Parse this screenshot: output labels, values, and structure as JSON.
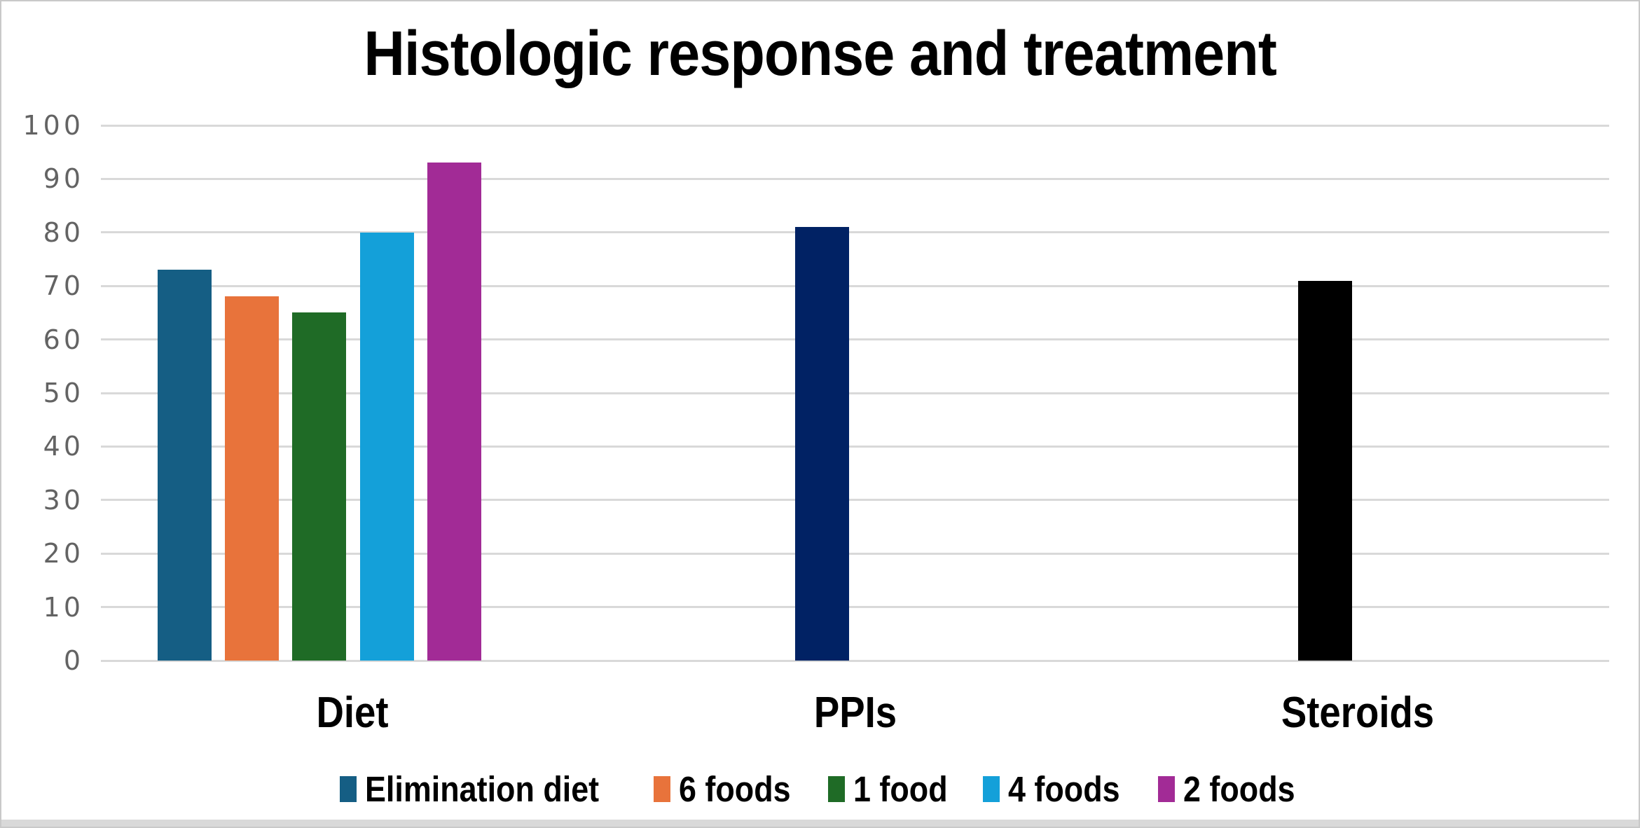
{
  "chart_data": {
    "type": "bar",
    "title": "Histologic response and treatment",
    "xlabel": "",
    "ylabel": "",
    "categories": [
      "Diet",
      "PPIs",
      "Steroids"
    ],
    "yticks": [
      0,
      10,
      20,
      30,
      40,
      50,
      60,
      70,
      80,
      90,
      100
    ],
    "ylim": [
      0,
      100
    ],
    "grid": true,
    "legend_position": "bottom",
    "legend": [
      {
        "label": "Elimination diet",
        "color": "#155e84"
      },
      {
        "label": "6 foods",
        "color": "#e8733b"
      },
      {
        "label": "1 food",
        "color": "#1f6b26"
      },
      {
        "label": "4 foods",
        "color": "#14a0d9"
      },
      {
        "label": "2 foods",
        "color": "#a22b96"
      }
    ],
    "bars": [
      {
        "category": "Diet",
        "series": "Elimination diet",
        "value": 73,
        "color": "#155e84"
      },
      {
        "category": "Diet",
        "series": "6 foods",
        "value": 68,
        "color": "#e8733b"
      },
      {
        "category": "Diet",
        "series": "1 food",
        "value": 65,
        "color": "#1f6b26"
      },
      {
        "category": "Diet",
        "series": "4 foods",
        "value": 80,
        "color": "#14a0d9"
      },
      {
        "category": "Diet",
        "series": "2 foods",
        "value": 93,
        "color": "#a22b96"
      },
      {
        "category": "PPIs",
        "series": "PPIs",
        "value": 81,
        "color": "#012264"
      },
      {
        "category": "Steroids",
        "series": "Steroids",
        "value": 71,
        "color": "#000000"
      }
    ],
    "colors": {
      "gridline": "#d9d9d9",
      "tick_label": "#636363",
      "title_text": "#000000",
      "frame_border": "#c9c9c9"
    }
  }
}
